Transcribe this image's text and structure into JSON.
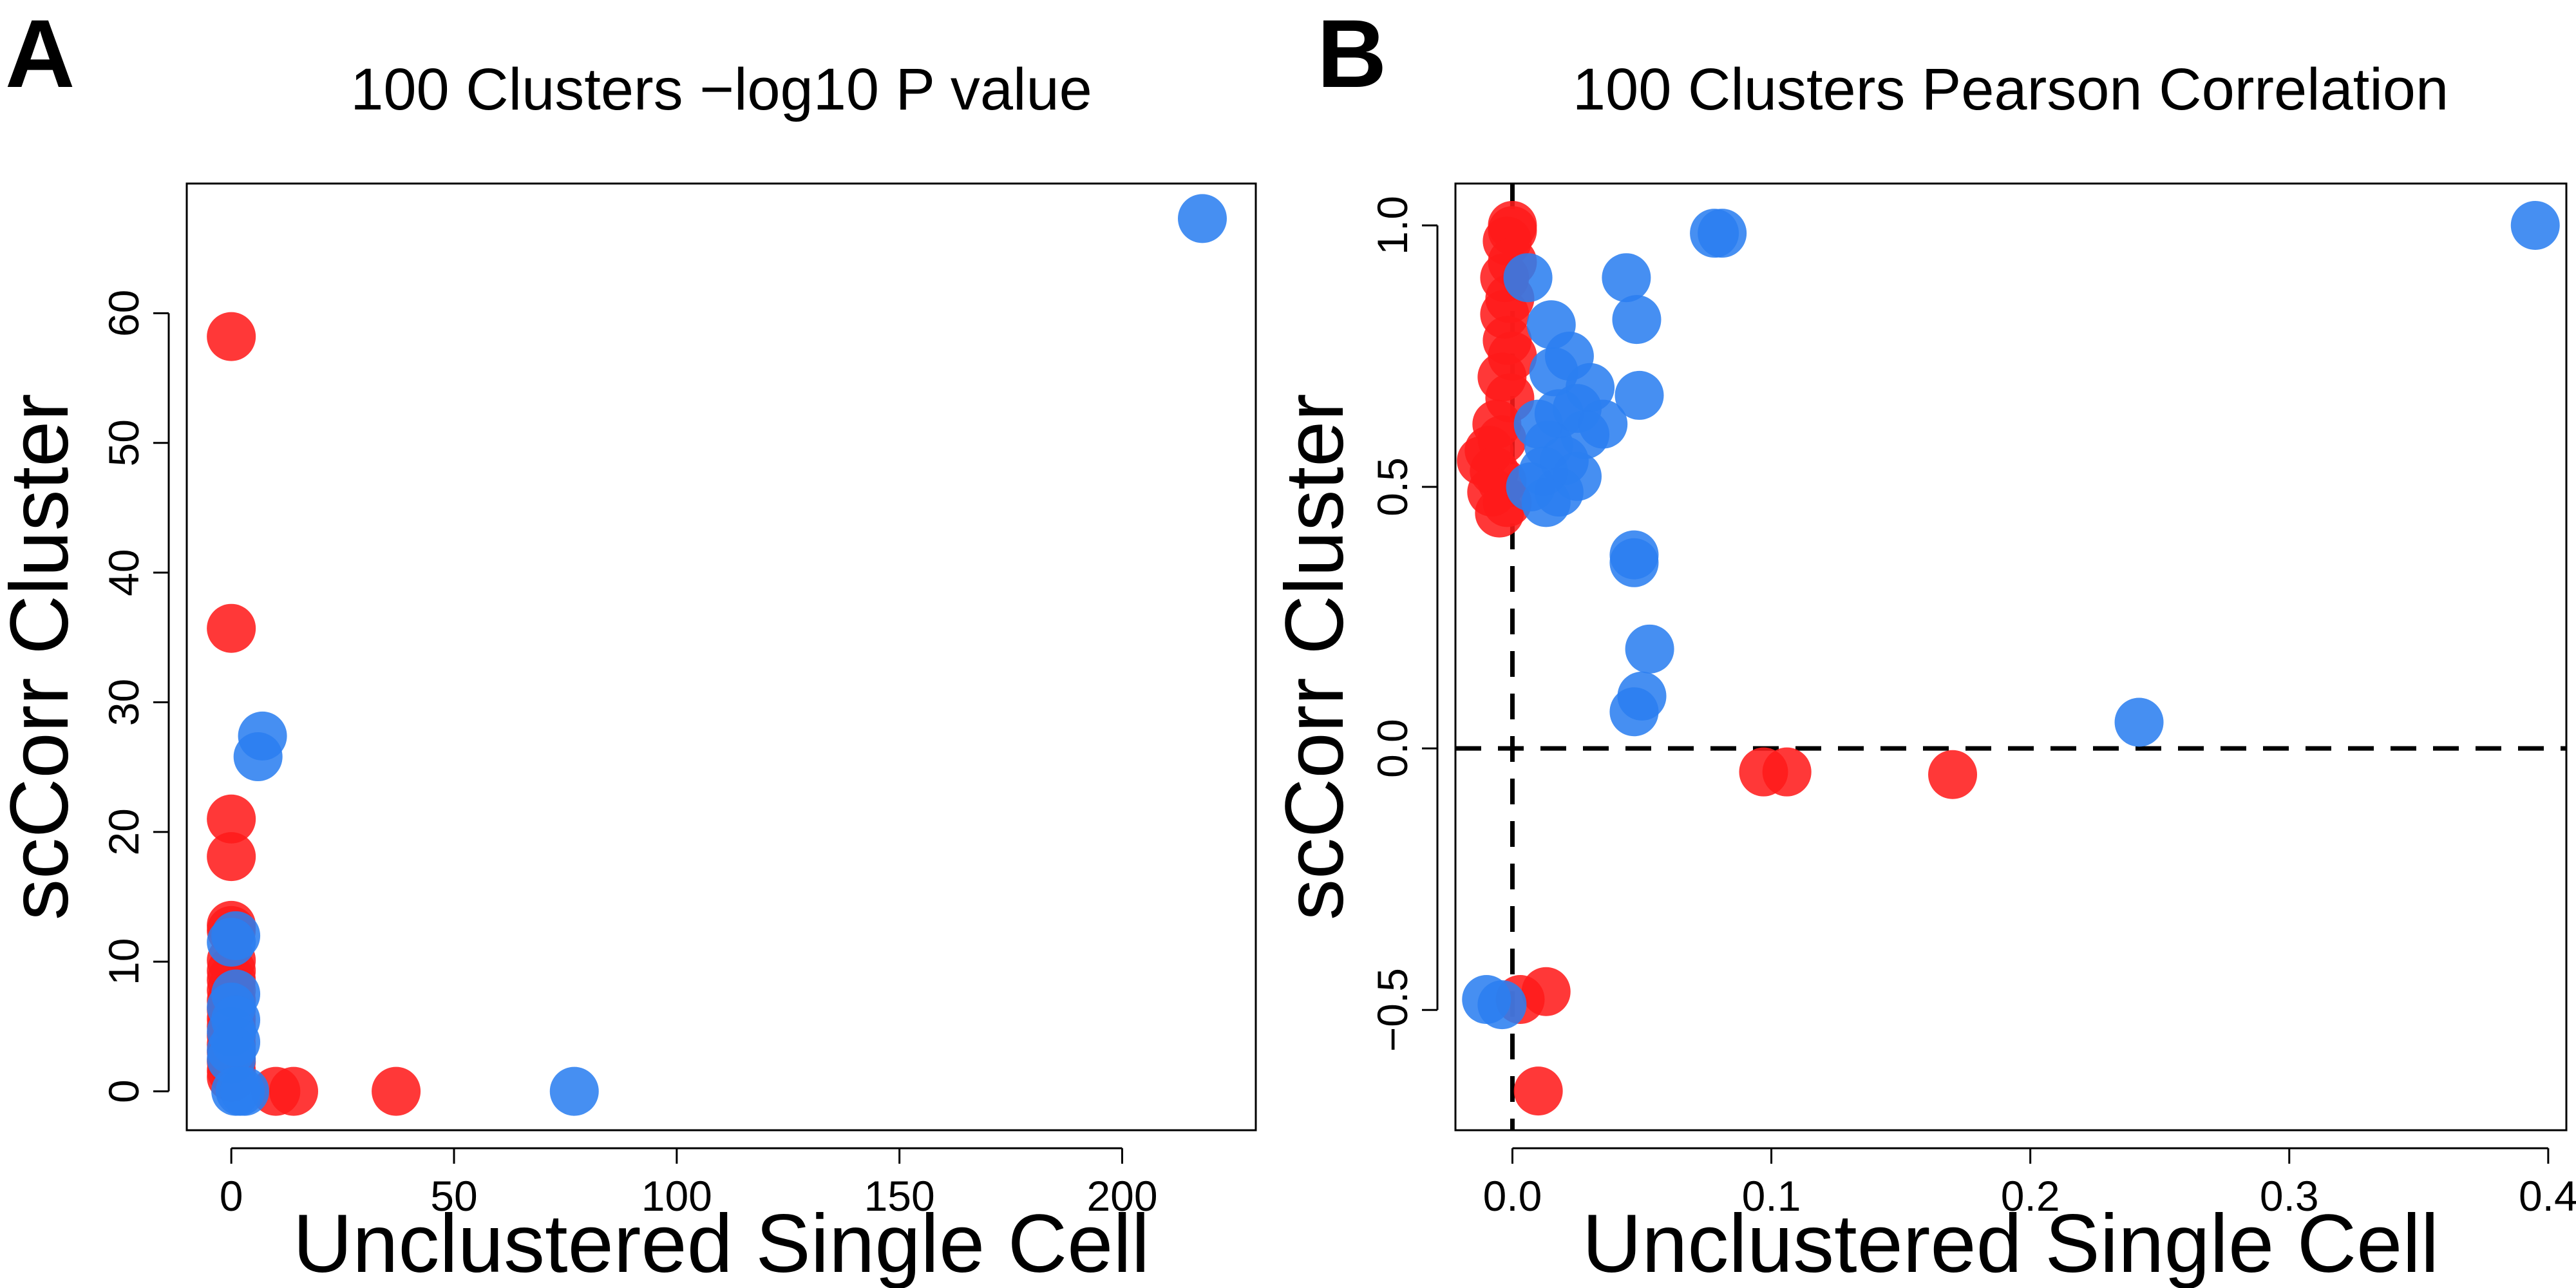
{
  "colors": {
    "red": "#ff1a1a",
    "blue": "#2b7ef0",
    "alpha": 0.87
  },
  "chart_data": [
    {
      "type": "scatter",
      "panel_label": "A",
      "title": "100 Clusters −log10 P value",
      "xlabel": "Unclustered Single Cell",
      "ylabel": "scCorr Cluster",
      "xlim": [
        -10,
        230
      ],
      "ylim": [
        -3,
        70
      ],
      "xticks": [
        0,
        50,
        100,
        150,
        200
      ],
      "xtick_labels": [
        "0",
        "50",
        "100",
        "150",
        "200"
      ],
      "yticks": [
        0,
        10,
        20,
        30,
        40,
        50,
        60
      ],
      "ytick_labels": [
        "0",
        "10",
        "20",
        "30",
        "40",
        "50",
        "60"
      ],
      "grid": false,
      "legend": "none",
      "ref_lines": [],
      "series": [
        {
          "color": "red",
          "points": [
            [
              0,
              58.2
            ],
            [
              0,
              35.7
            ],
            [
              0,
              21
            ],
            [
              0,
              18.1
            ],
            [
              0,
              12.8
            ],
            [
              0,
              12.4
            ],
            [
              0,
              10.1
            ],
            [
              0,
              9.3
            ],
            [
              0,
              8.6
            ],
            [
              0,
              7.8
            ],
            [
              0,
              7
            ],
            [
              0,
              6.3
            ],
            [
              0,
              5.6
            ],
            [
              0,
              5
            ],
            [
              0,
              4.3
            ],
            [
              0,
              3.6
            ],
            [
              0,
              3
            ],
            [
              0,
              2.3
            ],
            [
              0,
              1.6
            ],
            [
              0,
              1.1
            ],
            [
              10,
              0
            ],
            [
              14,
              0
            ],
            [
              37,
              0
            ]
          ]
        },
        {
          "color": "blue",
          "points": [
            [
              218,
              67.3
            ],
            [
              7,
              27.4
            ],
            [
              6,
              25.8
            ],
            [
              1,
              12
            ],
            [
              0,
              11.5
            ],
            [
              1,
              7.5
            ],
            [
              0,
              6.5
            ],
            [
              1,
              5.5
            ],
            [
              0,
              4.6
            ],
            [
              1,
              3.8
            ],
            [
              0,
              3.2
            ],
            [
              0,
              2.5
            ],
            [
              1,
              0
            ],
            [
              2,
              0
            ],
            [
              3,
              0
            ],
            [
              77,
              0
            ]
          ]
        }
      ]
    },
    {
      "type": "scatter",
      "panel_label": "B",
      "title": "100 Clusters Pearson Correlation",
      "xlabel": "Unclustered Single Cell",
      "ylabel": "scCorr Cluster",
      "xlim": [
        -0.022,
        0.407
      ],
      "ylim": [
        -0.73,
        1.08
      ],
      "xticks": [
        0,
        0.1,
        0.2,
        0.3,
        0.4
      ],
      "xtick_labels": [
        "0.0",
        "0.1",
        "0.2",
        "0.3",
        "0.4"
      ],
      "yticks": [
        -0.5,
        0,
        0.5,
        1
      ],
      "ytick_labels": [
        "−0.5",
        "0.0",
        "0.5",
        "1.0"
      ],
      "grid": false,
      "legend": "none",
      "ref_lines": [
        {
          "axis": "x",
          "value": 0
        },
        {
          "axis": "y",
          "value": 0
        }
      ],
      "series": [
        {
          "color": "red",
          "points": [
            [
              0,
              1
            ],
            [
              0,
              0.99
            ],
            [
              -0.002,
              0.97
            ],
            [
              0,
              0.93
            ],
            [
              -0.003,
              0.9
            ],
            [
              -0.001,
              0.86
            ],
            [
              -0.003,
              0.83
            ],
            [
              -0.002,
              0.78
            ],
            [
              0,
              0.75
            ],
            [
              -0.004,
              0.71
            ],
            [
              -0.001,
              0.67
            ],
            [
              -0.006,
              0.62
            ],
            [
              -0.004,
              0.59
            ],
            [
              -0.009,
              0.57
            ],
            [
              -0.012,
              0.55
            ],
            [
              -0.007,
              0.53
            ],
            [
              -0.004,
              0.51
            ],
            [
              -0.008,
              0.49
            ],
            [
              -0.002,
              0.47
            ],
            [
              -0.005,
              0.45
            ],
            [
              0.097,
              -0.045
            ],
            [
              0.106,
              -0.045
            ],
            [
              0.17,
              -0.05
            ],
            [
              0.013,
              -0.465
            ],
            [
              0.003,
              -0.48
            ],
            [
              0.01,
              -0.655
            ]
          ]
        },
        {
          "color": "blue",
          "points": [
            [
              0.395,
              1
            ],
            [
              0.078,
              0.985
            ],
            [
              0.081,
              0.985
            ],
            [
              0.044,
              0.9
            ],
            [
              0.006,
              0.9
            ],
            [
              0.048,
              0.82
            ],
            [
              0.015,
              0.81
            ],
            [
              0.022,
              0.75
            ],
            [
              0.016,
              0.72
            ],
            [
              0.049,
              0.675
            ],
            [
              0.03,
              0.69
            ],
            [
              0.025,
              0.65
            ],
            [
              0.018,
              0.64
            ],
            [
              0.035,
              0.62
            ],
            [
              0.028,
              0.6
            ],
            [
              0.01,
              0.62
            ],
            [
              0.014,
              0.58
            ],
            [
              0.02,
              0.55
            ],
            [
              0.025,
              0.52
            ],
            [
              0.012,
              0.53
            ],
            [
              0.018,
              0.49
            ],
            [
              0.013,
              0.47
            ],
            [
              0.007,
              0.5
            ],
            [
              0.047,
              0.37
            ],
            [
              0.047,
              0.355
            ],
            [
              0.053,
              0.19
            ],
            [
              0.05,
              0.1
            ],
            [
              0.047,
              0.07
            ],
            [
              0.242,
              0.05
            ],
            [
              -0.01,
              -0.48
            ],
            [
              -0.004,
              -0.49
            ]
          ]
        }
      ]
    }
  ]
}
